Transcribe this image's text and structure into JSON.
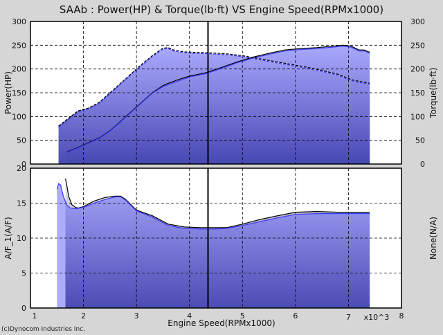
{
  "title": "SAAb : Power(HP) & Torque(lb·ft) VS Engine Speed(RPMx1000)",
  "copyright": "(c)Dynocom Industries Inc.",
  "colors": {
    "background": "#d6d6d6",
    "plot_background": "#ffffff",
    "fill_dark": "#1c1c52",
    "fill_light": "#f4f4f8",
    "run_a": "#000000",
    "run_b": "#3a3aff",
    "grid": "#000000"
  },
  "chart_data": [
    {
      "type": "area",
      "panel": "top",
      "ylabel": "Power(HP)",
      "ylabel_right": "Torque(lb·ft)",
      "xlim": [
        1,
        8
      ],
      "ylim": [
        0,
        300
      ],
      "yticks": [
        0,
        50,
        100,
        150,
        200,
        250,
        300
      ],
      "grid": true,
      "cursor_x": 4.35,
      "series": [
        {
          "x": [
            1.68,
            1.9,
            2.1,
            2.3,
            2.5,
            2.7,
            2.9,
            3.1,
            3.3,
            3.5,
            3.6,
            3.8,
            4.0,
            4.3,
            4.6,
            4.9,
            5.2,
            5.5,
            5.8,
            6.1,
            6.4,
            6.7,
            6.9,
            7.05,
            7.2,
            7.3,
            7.4
          ],
          "y": [
            25,
            35,
            45,
            55,
            70,
            90,
            110,
            130,
            150,
            165,
            170,
            178,
            185,
            192,
            203,
            215,
            225,
            233,
            240,
            243,
            245,
            248,
            250,
            248,
            240,
            240,
            235
          ]
        },
        {
          "x": [
            1.68,
            1.9,
            2.1,
            2.3,
            2.5,
            2.7,
            2.9,
            3.1,
            3.3,
            3.5,
            3.6,
            3.8,
            4.0,
            4.3,
            4.6,
            4.9,
            5.2,
            5.5,
            5.8,
            6.1,
            6.4,
            6.7,
            6.9,
            7.05,
            7.2,
            7.3,
            7.4
          ],
          "y": [
            24,
            34,
            44,
            54,
            69,
            89,
            109,
            129,
            149,
            163,
            167,
            175,
            183,
            190,
            201,
            213,
            223,
            231,
            238,
            241,
            243,
            246,
            248,
            246,
            238,
            238,
            233
          ]
        },
        {
          "x": [
            1.53,
            1.7,
            1.9,
            2.1,
            2.3,
            2.5,
            2.7,
            2.9,
            3.1,
            3.3,
            3.5,
            3.6,
            3.7,
            3.9,
            4.1,
            4.4,
            4.7,
            5.0,
            5.3,
            5.6,
            5.9,
            6.2,
            6.5,
            6.8,
            7.0,
            7.1,
            7.2,
            7.4
          ],
          "y": [
            80,
            95,
            112,
            118,
            130,
            150,
            170,
            190,
            210,
            228,
            244,
            245,
            240,
            236,
            235,
            234,
            232,
            228,
            222,
            216,
            210,
            204,
            197,
            189,
            180,
            176,
            174,
            170
          ]
        },
        {
          "x": [
            1.53,
            1.7,
            1.9,
            2.1,
            2.3,
            2.5,
            2.7,
            2.9,
            3.1,
            3.3,
            3.5,
            3.6,
            3.7,
            3.9,
            4.1,
            4.4,
            4.7,
            5.0,
            5.3,
            5.6,
            5.9,
            6.2,
            6.5,
            6.8,
            7.0,
            7.1,
            7.2,
            7.4
          ],
          "y": [
            77,
            92,
            110,
            116,
            128,
            148,
            168,
            188,
            208,
            226,
            242,
            243,
            238,
            234,
            233,
            232,
            230,
            226,
            220,
            214,
            208,
            202,
            195,
            187,
            178,
            174,
            172,
            168
          ]
        }
      ]
    },
    {
      "type": "area",
      "panel": "bottom",
      "xlabel": "Engine Speed(RPMx1000)",
      "ylabel": "A/F_1(A/F)",
      "ylabel_right": "None(N/A)",
      "xlim": [
        1,
        8
      ],
      "ylim": [
        0,
        20
      ],
      "yticks": [
        0,
        5,
        10,
        15,
        20
      ],
      "xticks": [
        1,
        2,
        3,
        4,
        5,
        6,
        7,
        8
      ],
      "x_multiplier_label": "x10^3",
      "grid": true,
      "cursor_x": 4.35,
      "series": [
        {
          "x": [
            1.66,
            1.68,
            1.72,
            1.78,
            1.85,
            1.9,
            2.0,
            2.2,
            2.4,
            2.6,
            2.7,
            2.8,
            3.0,
            3.3,
            3.6,
            3.9,
            4.2,
            4.5,
            4.7,
            5.0,
            5.3,
            5.6,
            6.0,
            6.4,
            6.8,
            7.1,
            7.4
          ],
          "y": [
            18.5,
            17.8,
            16.0,
            14.8,
            14.4,
            14.3,
            14.5,
            15.3,
            15.8,
            16.0,
            16.0,
            15.5,
            14.0,
            13.2,
            12.0,
            11.6,
            11.5,
            11.5,
            11.5,
            12.0,
            12.6,
            13.1,
            13.7,
            13.8,
            13.7,
            13.7,
            13.7
          ]
        },
        {
          "x": [
            1.5,
            1.53,
            1.57,
            1.62,
            1.68,
            1.75,
            1.85,
            2.0,
            2.2,
            2.4,
            2.6,
            2.7,
            2.8,
            3.0,
            3.3,
            3.6,
            3.9,
            4.2,
            4.5,
            4.7,
            5.0,
            5.3,
            5.6,
            6.0,
            6.4,
            6.8,
            7.1,
            7.4
          ],
          "y": [
            17.0,
            17.8,
            17.6,
            16.0,
            14.8,
            14.3,
            14.2,
            14.4,
            15.0,
            15.5,
            15.9,
            15.9,
            15.4,
            13.9,
            13.0,
            11.8,
            11.4,
            11.3,
            11.3,
            11.4,
            11.8,
            12.3,
            12.8,
            13.4,
            13.5,
            13.5,
            13.5,
            13.5
          ]
        }
      ]
    }
  ]
}
